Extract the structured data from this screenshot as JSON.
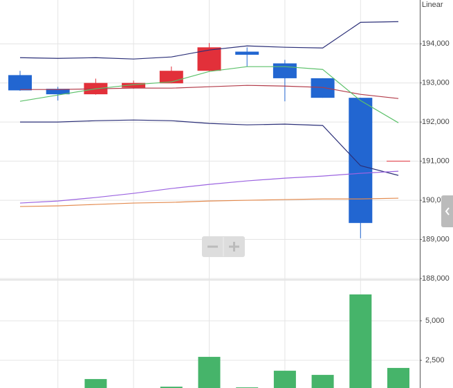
{
  "chart_data": {
    "type": "candlestick",
    "scale_label": "Linear",
    "categories": [
      null,
      null,
      null,
      null,
      null,
      null,
      null,
      null,
      null,
      null,
      null
    ],
    "open": [
      193200,
      192850,
      192710,
      192880,
      192990,
      193310,
      193800,
      193500,
      193120,
      192620,
      191000
    ],
    "high": [
      193310,
      192900,
      193110,
      193060,
      193420,
      194020,
      193910,
      193590,
      193120,
      192620,
      191000
    ],
    "low": [
      192800,
      192550,
      192700,
      192850,
      192990,
      193300,
      193420,
      192530,
      192620,
      189030,
      191000
    ],
    "close": [
      192810,
      192710,
      193000,
      193000,
      193310,
      193910,
      193720,
      193120,
      192620,
      189420,
      191000
    ],
    "up_color": "#e2303a",
    "down_color": "#2266d1",
    "series": [
      {
        "color": "#2b2f78",
        "values": [
          193646,
          193628,
          193646,
          193611,
          193664,
          193841,
          193947,
          193912,
          193894,
          194549,
          194566
        ]
      },
      {
        "color": "#2b2f78",
        "values": [
          192000,
          192000,
          192035,
          192053,
          192035,
          191965,
          191929,
          191947,
          191912,
          190885,
          190637
        ]
      },
      {
        "color": "#b23a48",
        "values": [
          192832,
          192832,
          192850,
          192868,
          192867,
          192903,
          192938,
          192920,
          192885,
          192708,
          192602
        ]
      },
      {
        "color": "#5cc16a",
        "values": [
          192531,
          192690,
          192850,
          192956,
          193027,
          193292,
          193416,
          193416,
          193345,
          192549,
          191982
        ]
      },
      {
        "color": "#9b63e0",
        "values": [
          189929,
          189982,
          190071,
          190177,
          190301,
          190407,
          190496,
          190566,
          190619,
          190690,
          190743
        ]
      },
      {
        "color": "#e38a4e",
        "values": [
          189841,
          189858,
          189894,
          189929,
          189947,
          189982,
          190000,
          190018,
          190035,
          190035,
          190053
        ]
      }
    ],
    "ylim": [
      188000,
      195120
    ],
    "yticks": [
      {
        "value": 188000,
        "label": "188,000"
      },
      {
        "value": 189000,
        "label": "189,000"
      },
      {
        "value": 190000,
        "label": "190,000"
      },
      {
        "value": 191000,
        "label": "191,000"
      },
      {
        "value": 192000,
        "label": "192,000"
      },
      {
        "value": 193000,
        "label": "193,000"
      },
      {
        "value": 194000,
        "label": "194,000"
      }
    ],
    "grid": true,
    "volume": {
      "color": "#46b46a",
      "values": [
        null,
        null,
        1316,
        null,
        833,
        2719,
        790,
        1842,
        1579,
        6667,
        2018
      ],
      "ylim": [
        750,
        7540
      ],
      "yticks": [
        {
          "value": 2500,
          "label": "2,500"
        },
        {
          "value": 5000,
          "label": "5,000"
        }
      ]
    }
  }
}
